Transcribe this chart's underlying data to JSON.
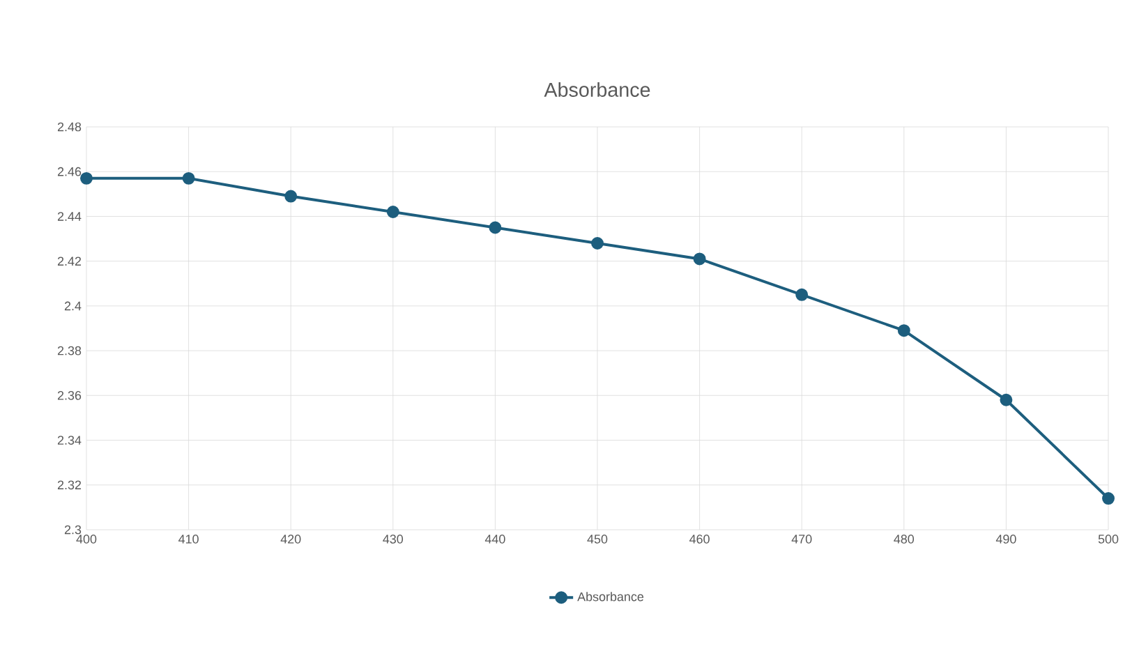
{
  "chart_data": {
    "type": "line",
    "title": "Absorbance",
    "x": [
      400,
      410,
      420,
      430,
      440,
      450,
      460,
      470,
      480,
      490,
      500
    ],
    "series": [
      {
        "name": "Absorbance",
        "color": "#1d5e7e",
        "values": [
          2.457,
          2.457,
          2.449,
          2.442,
          2.435,
          2.428,
          2.421,
          2.405,
          2.389,
          2.358,
          2.314
        ]
      }
    ],
    "xlim": [
      400,
      500
    ],
    "xticks": [
      400,
      410,
      420,
      430,
      440,
      450,
      460,
      470,
      480,
      490,
      500
    ],
    "ylim": [
      2.3,
      2.48
    ],
    "yticks": [
      2.3,
      2.32,
      2.34,
      2.36,
      2.38,
      2.4,
      2.42,
      2.44,
      2.46,
      2.48
    ],
    "grid": true,
    "legend": "bottom",
    "marker": "circle",
    "line_style": "solid"
  }
}
